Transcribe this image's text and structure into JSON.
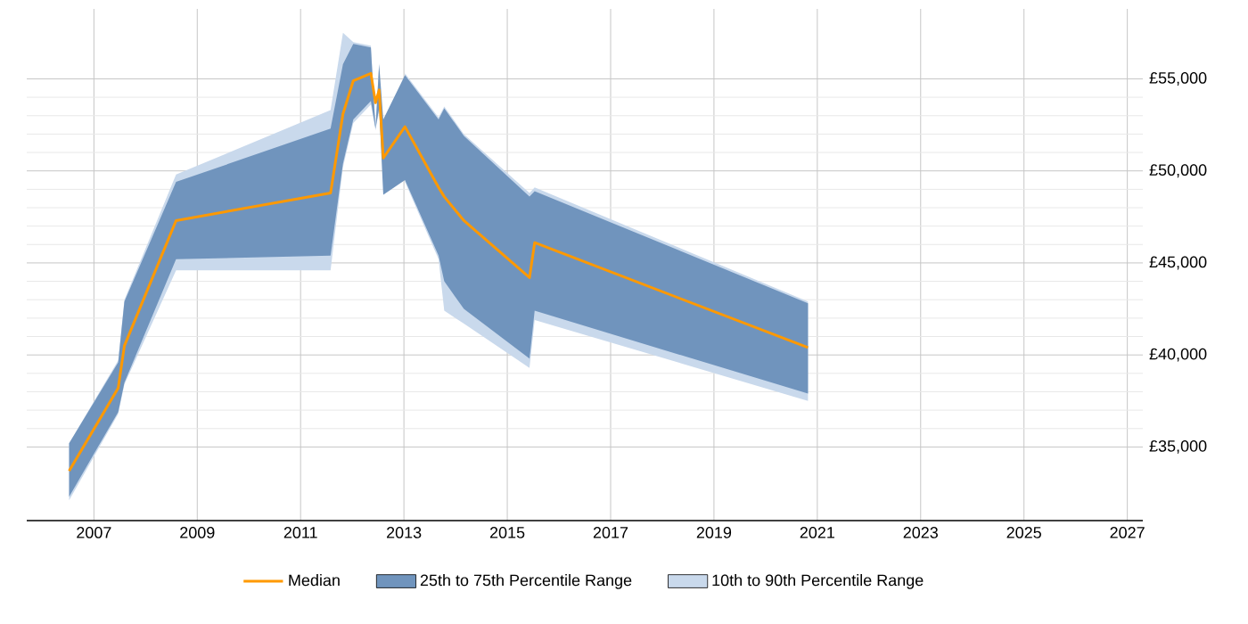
{
  "chart_data": {
    "type": "line",
    "x": [
      2006.52,
      2007.47,
      2007.59,
      2008.59,
      2011.58,
      2011.82,
      2012.02,
      2012.36,
      2012.45,
      2012.52,
      2012.6,
      2013.02,
      2013.67,
      2013.78,
      2014.16,
      2015.43,
      2015.53,
      2020.82
    ],
    "series": [
      {
        "name": "Median",
        "color": "#ff9900",
        "values": [
          33700,
          38200,
          40500,
          47300,
          48800,
          53100,
          54900,
          55300,
          53700,
          54400,
          50700,
          52400,
          49100,
          48600,
          47300,
          44200,
          46100,
          40400
        ]
      },
      {
        "name": "25th to 75th Percentile Range",
        "type": "area",
        "color": "#7094bd",
        "values": [
          null,
          null,
          null,
          null,
          null,
          null,
          null,
          null,
          null,
          null,
          null,
          null,
          null,
          null,
          null,
          null,
          null,
          null
        ],
        "upper": [
          35200,
          39600,
          42900,
          49400,
          52300,
          55800,
          56900,
          56700,
          52300,
          55800,
          52800,
          55200,
          52800,
          53400,
          51900,
          48600,
          48900,
          42800
        ],
        "lower": [
          32300,
          36900,
          38500,
          45200,
          45400,
          50400,
          52800,
          53800,
          52300,
          53400,
          48700,
          49500,
          45400,
          44000,
          42500,
          39800,
          42400,
          37900
        ]
      },
      {
        "name": "10th to 90th Percentile Range",
        "type": "area",
        "color": "#c9d9ec",
        "values": [
          null,
          null,
          null,
          null,
          null,
          null,
          null,
          null,
          null,
          null,
          null,
          null,
          null,
          null,
          null,
          null,
          null,
          null
        ],
        "upper": [
          35200,
          39700,
          43000,
          49800,
          53300,
          57500,
          57000,
          56800,
          52400,
          55900,
          null,
          55300,
          52900,
          53500,
          52000,
          48800,
          49100,
          42900
        ],
        "lower": [
          32100,
          36800,
          38400,
          44600,
          44600,
          50200,
          52600,
          53600,
          52200,
          53300,
          null,
          49400,
          45200,
          42400,
          41700,
          39300,
          41900,
          37500
        ]
      }
    ],
    "xlim": [
      2005.7,
      2027.3
    ],
    "xticks": [
      2007,
      2009,
      2011,
      2013,
      2015,
      2017,
      2019,
      2021,
      2023,
      2025,
      2027
    ],
    "ylim": [
      31000,
      58800
    ],
    "yticks": [
      {
        "value": 35000,
        "label": "£35,000"
      },
      {
        "value": 40000,
        "label": "£40,000"
      },
      {
        "value": 45000,
        "label": "£45,000"
      },
      {
        "value": 50000,
        "label": "£50,000"
      },
      {
        "value": 55000,
        "label": "£55,000"
      }
    ],
    "grid": true,
    "legend": "bottom"
  }
}
